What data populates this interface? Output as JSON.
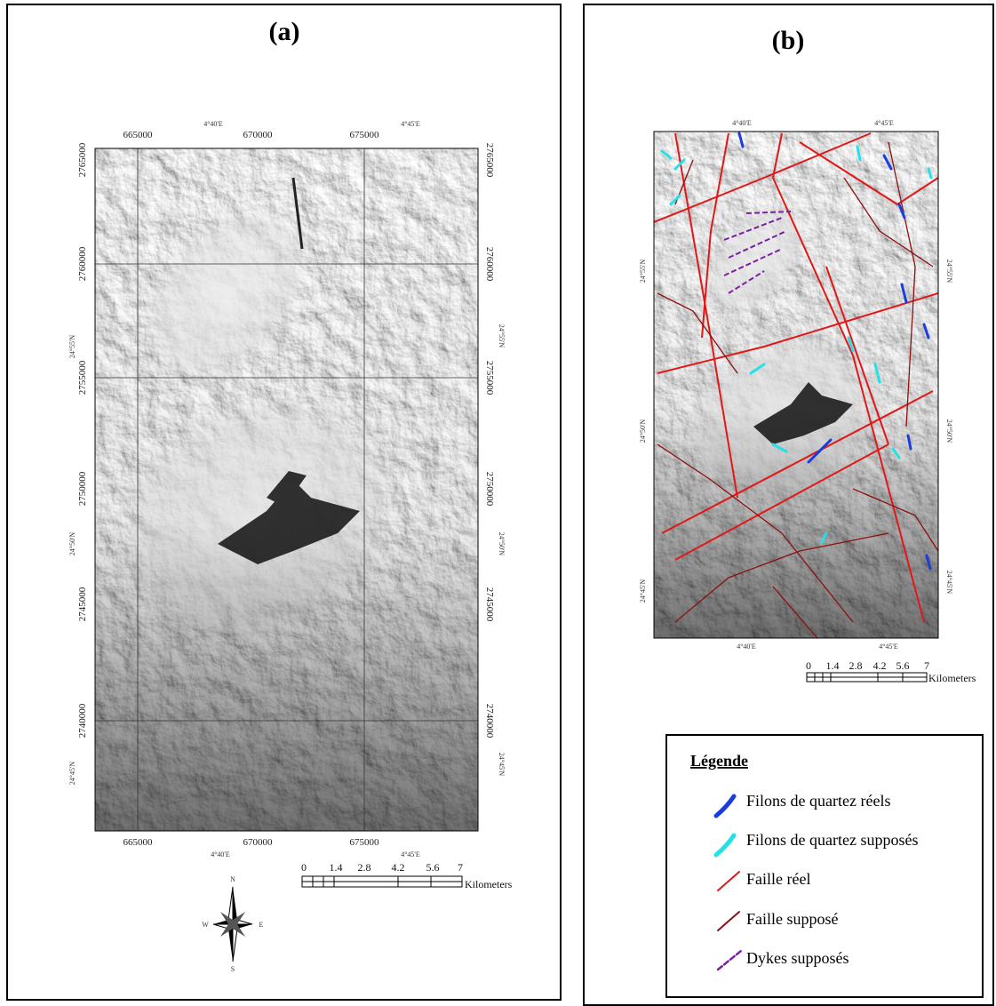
{
  "panel_a": {
    "label": "(a)",
    "top_x_labels": [
      "665000",
      "670000",
      "675000"
    ],
    "top_geo_labels": [
      "4°40'E",
      "4°45'E"
    ],
    "left_y_labels": [
      "2765000",
      "2760000",
      "2755000",
      "2750000",
      "2745000",
      "2740000"
    ],
    "left_geo_labels": [
      "24°55'N",
      "24°50'N",
      "24°45'N"
    ],
    "right_y_labels": [
      "2765000",
      "2760000",
      "2755000",
      "2750000",
      "2745000",
      "2740000"
    ],
    "right_geo_labels": [
      "24°55'N",
      "24°50'N",
      "24°45'N"
    ],
    "bottom_x_labels": [
      "665000",
      "670000",
      "675000"
    ],
    "bottom_geo_labels": [
      "4°40'E",
      "4°45'E"
    ],
    "scale": {
      "ticks": [
        "0",
        "1.4",
        "2.8",
        "4.2",
        "5.6",
        "7"
      ],
      "unit": "Kilometers"
    },
    "compass": {
      "n": "N",
      "s": "S",
      "e": "E",
      "w": "W"
    }
  },
  "panel_b": {
    "label": "(b)",
    "top_geo_labels": [
      "4°40'E",
      "4°45'E"
    ],
    "bottom_geo_labels": [
      "4°40'E",
      "4°45'E"
    ],
    "left_geo_labels": [
      "24°55'N",
      "24°50'N",
      "24°45'N"
    ],
    "right_geo_labels": [
      "24°55'N",
      "24°50'N",
      "24°45'N"
    ],
    "scale": {
      "ticks": [
        "0",
        "1.4",
        "2.8",
        "4.2",
        "5.6",
        "7"
      ],
      "unit": "Kilometers"
    }
  },
  "legend": {
    "title": "Légende",
    "items": [
      "Filons de quartez réels",
      "Filons de quartez supposés",
      "Faille réel",
      "Faille supposé",
      "Dykes supposés"
    ]
  }
}
